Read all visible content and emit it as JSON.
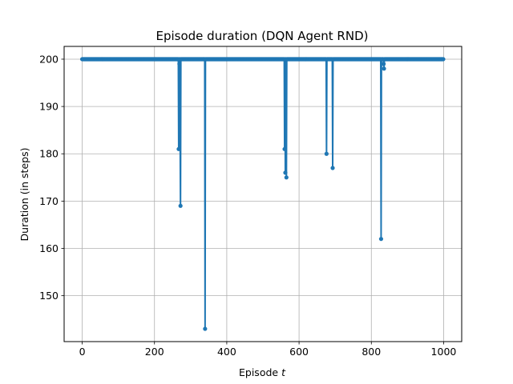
{
  "chart_data": {
    "type": "line",
    "title": "Episode duration (DQN Agent RND)",
    "xlabel": "Episode",
    "xlabel_var": "t",
    "ylabel": "Duration (in steps)",
    "xlim": [
      -50,
      1050
    ],
    "ylim": [
      140.3,
      202.7
    ],
    "xticks": [
      0,
      200,
      400,
      600,
      800,
      1000
    ],
    "yticks": [
      150,
      160,
      170,
      180,
      190,
      200
    ],
    "grid": true,
    "series_color": "#1f77b4",
    "series": [
      {
        "baseline": 200,
        "x_range": [
          0,
          999
        ],
        "marker": "circle",
        "points": [
          {
            "x": 0,
            "y": 200
          },
          {
            "x": 266,
            "y": 200
          },
          {
            "x": 267,
            "y": 181
          },
          {
            "x": 268,
            "y": 200
          },
          {
            "x": 269,
            "y": 199
          },
          {
            "x": 270,
            "y": 200
          },
          {
            "x": 272,
            "y": 169
          },
          {
            "x": 273,
            "y": 200
          },
          {
            "x": 339,
            "y": 200
          },
          {
            "x": 340,
            "y": 143
          },
          {
            "x": 341,
            "y": 200
          },
          {
            "x": 559,
            "y": 200
          },
          {
            "x": 560,
            "y": 181
          },
          {
            "x": 561,
            "y": 200
          },
          {
            "x": 562,
            "y": 176
          },
          {
            "x": 563,
            "y": 200
          },
          {
            "x": 565,
            "y": 175
          },
          {
            "x": 566,
            "y": 200
          },
          {
            "x": 675,
            "y": 200
          },
          {
            "x": 676,
            "y": 180
          },
          {
            "x": 677,
            "y": 200
          },
          {
            "x": 692,
            "y": 200
          },
          {
            "x": 693,
            "y": 177
          },
          {
            "x": 694,
            "y": 200
          },
          {
            "x": 826,
            "y": 200
          },
          {
            "x": 827,
            "y": 162
          },
          {
            "x": 828,
            "y": 200
          },
          {
            "x": 833,
            "y": 200
          },
          {
            "x": 834,
            "y": 199
          },
          {
            "x": 835,
            "y": 198
          },
          {
            "x": 836,
            "y": 200
          },
          {
            "x": 999,
            "y": 200
          }
        ]
      }
    ]
  }
}
